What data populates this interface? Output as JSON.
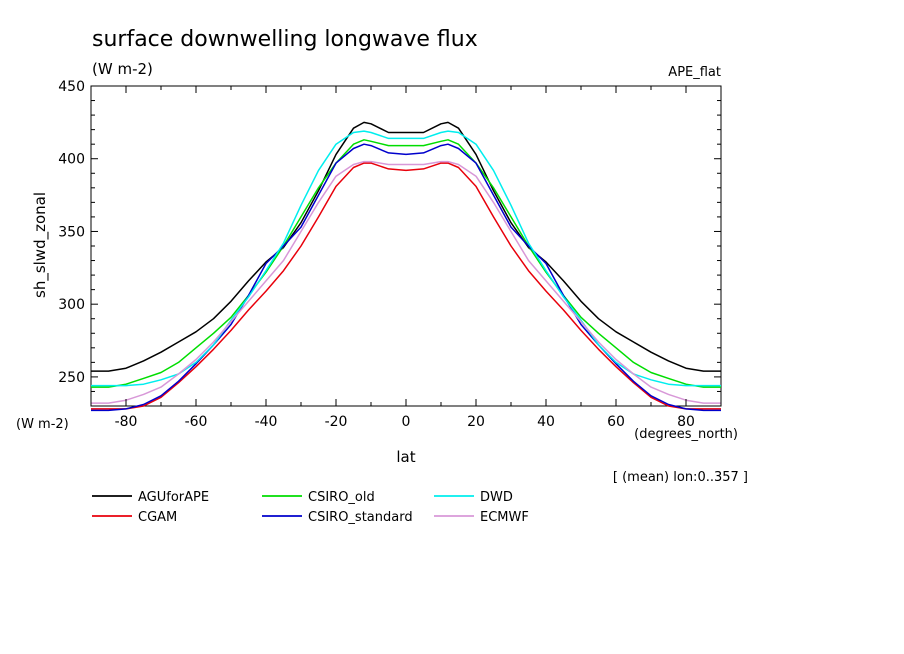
{
  "chart_data": {
    "type": "line",
    "title": "surface downwelling longwave flux",
    "units": "(W m-2)",
    "tag": "APE_flat",
    "xlabel": "lat",
    "x_units": "(degrees_north)",
    "ylabel": "sh_slwd_zonal",
    "y_units": "(W m-2)",
    "note": "[ (mean) lon:0..357 ]",
    "xlim": [
      -90,
      90
    ],
    "ylim": [
      230,
      450
    ],
    "xticks": [
      -80,
      -60,
      -40,
      -20,
      0,
      20,
      40,
      60,
      80
    ],
    "yticks": [
      250,
      300,
      350,
      400,
      450
    ],
    "xtick_labels": [
      "-80",
      "-60",
      "-40",
      "-20",
      "0",
      "20",
      "40",
      "60",
      "80"
    ],
    "ytick_labels": [
      "250",
      "300",
      "350",
      "400",
      "450"
    ],
    "legend_position": "bottom",
    "x": [
      -90,
      -85,
      -80,
      -75,
      -70,
      -65,
      -60,
      -55,
      -50,
      -45,
      -40,
      -35,
      -30,
      -25,
      -20,
      -15,
      -12,
      -10,
      -5,
      0,
      5,
      10,
      12,
      15,
      20,
      25,
      30,
      35,
      40,
      45,
      50,
      55,
      60,
      65,
      70,
      75,
      80,
      85,
      90
    ],
    "series": [
      {
        "name": "AGUforAPE",
        "color": "#000000",
        "values": [
          254,
          254,
          256,
          261,
          267,
          274,
          281,
          290,
          302,
          316,
          329,
          339,
          356,
          378,
          403,
          421,
          425,
          424,
          418,
          418,
          418,
          424,
          425,
          421,
          403,
          378,
          356,
          339,
          329,
          316,
          302,
          290,
          281,
          274,
          267,
          261,
          256,
          254,
          254
        ]
      },
      {
        "name": "CGAM",
        "color": "#e8000b",
        "values": [
          228,
          228,
          228,
          230,
          236,
          246,
          257,
          269,
          282,
          296,
          309,
          323,
          340,
          360,
          381,
          394,
          397,
          397,
          393,
          392,
          393,
          397,
          397,
          394,
          381,
          360,
          340,
          323,
          309,
          296,
          282,
          269,
          257,
          246,
          236,
          230,
          228,
          228,
          228
        ]
      },
      {
        "name": "CSIRO_old",
        "color": "#00dd00",
        "values": [
          243,
          243,
          245,
          249,
          253,
          260,
          270,
          280,
          291,
          306,
          322,
          340,
          360,
          380,
          397,
          410,
          413,
          412,
          409,
          409,
          409,
          412,
          413,
          410,
          397,
          380,
          360,
          340,
          322,
          306,
          291,
          280,
          270,
          260,
          253,
          249,
          245,
          243,
          243
        ]
      },
      {
        "name": "CSIRO_standard",
        "color": "#0000cc",
        "values": [
          227,
          227,
          228,
          231,
          237,
          247,
          259,
          272,
          286,
          306,
          328,
          340,
          353,
          375,
          397,
          407,
          410,
          409,
          404,
          403,
          404,
          409,
          410,
          407,
          397,
          375,
          353,
          340,
          328,
          306,
          286,
          272,
          259,
          247,
          237,
          231,
          228,
          227,
          227
        ]
      },
      {
        "name": "DWD",
        "color": "#00eeee",
        "values": [
          244,
          244,
          244,
          245,
          248,
          252,
          260,
          272,
          289,
          305,
          323,
          342,
          368,
          392,
          410,
          418,
          419,
          418,
          414,
          414,
          414,
          418,
          419,
          418,
          410,
          392,
          368,
          342,
          323,
          305,
          289,
          272,
          260,
          252,
          248,
          245,
          244,
          244,
          244
        ]
      },
      {
        "name": "ECMWF",
        "color": "#d898d8",
        "values": [
          232,
          232,
          234,
          238,
          243,
          252,
          262,
          274,
          288,
          302,
          316,
          330,
          350,
          370,
          388,
          396,
          398,
          398,
          396,
          396,
          396,
          398,
          398,
          396,
          388,
          370,
          350,
          330,
          316,
          302,
          288,
          274,
          262,
          252,
          243,
          238,
          234,
          232,
          232
        ]
      }
    ]
  }
}
